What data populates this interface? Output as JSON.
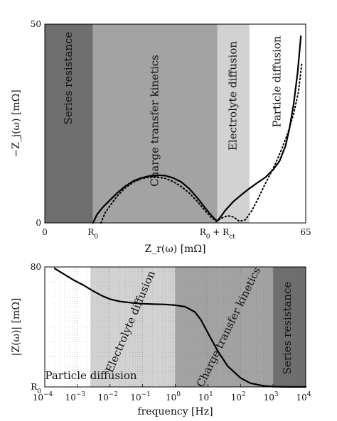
{
  "chart_data": [
    {
      "type": "line",
      "xlabel": "Z_r(ω) [mΩ]",
      "ylabel": "−Z_j(ω) [mΩ]",
      "xlim": [
        0,
        65
      ],
      "ylim": [
        0,
        50
      ],
      "y_ticks": [
        "0",
        "50"
      ],
      "x_ticks": [
        {
          "value": 0,
          "label": "0"
        },
        {
          "value": 12,
          "label": "R_0"
        },
        {
          "value": 43,
          "label": "R_0 + R_ct"
        },
        {
          "value": 65,
          "label": "65"
        }
      ],
      "regions": [
        {
          "name": "Series resistance",
          "x_range": [
            0,
            12
          ],
          "color": "#6e6e6e"
        },
        {
          "name": "Charge transfer kinetics",
          "x_range": [
            12,
            43
          ],
          "color": "#a3a3a3"
        },
        {
          "name": "Electrolyte diffusion",
          "x_range": [
            43,
            51
          ],
          "color": "#d2d2d2"
        },
        {
          "name": "Particle diffusion",
          "x_range": [
            51,
            65
          ],
          "color": "#ffffff"
        }
      ],
      "series": [
        {
          "style": "solid",
          "x": [
            12,
            13,
            14.5,
            16,
            18,
            20,
            22,
            24,
            26,
            28,
            30,
            32,
            34,
            36,
            38,
            40,
            41.5,
            42.5,
            43,
            44,
            45,
            47,
            49,
            51,
            53,
            55,
            57,
            58.5,
            60,
            61,
            62,
            63,
            63.8
          ],
          "y": [
            0,
            2.1,
            4.0,
            5.5,
            7.5,
            9.2,
            10.5,
            11.3,
            11.8,
            12.0,
            11.9,
            11.3,
            10.3,
            8.6,
            6.3,
            3.7,
            1.9,
            0.8,
            0.5,
            1.8,
            3.2,
            5.4,
            7.1,
            8.7,
            10.1,
            11.5,
            13.5,
            15.6,
            19.5,
            24.0,
            30.0,
            38.0,
            47.0
          ]
        },
        {
          "style": "dotted",
          "x": [
            14,
            15,
            16.5,
            18,
            20,
            22,
            24,
            26,
            28,
            30,
            32,
            34,
            36,
            38,
            40,
            41.5,
            42.8,
            44,
            45.5,
            47,
            48.5,
            50,
            51.5,
            53,
            54.5,
            56,
            57.5,
            59,
            60.5,
            62,
            63.2,
            64
          ],
          "y": [
            0,
            2.5,
            4.7,
            6.7,
            8.8,
            10.2,
            11.1,
            11.5,
            11.5,
            11.2,
            10.4,
            9.1,
            7.5,
            5.4,
            3.0,
            1.4,
            0.4,
            1.2,
            1.8,
            1.5,
            0.4,
            0.8,
            3.0,
            5.8,
            9.0,
            12.0,
            15.0,
            18.5,
            22.5,
            27.5,
            33.0,
            40.0
          ]
        }
      ]
    },
    {
      "type": "line",
      "xlabel": "frequency [Hz]",
      "ylabel": "|Z(ω)| [mΩ]",
      "x_scale": "log",
      "xlim": [
        0.0001,
        10000
      ],
      "ylim": [
        0,
        80
      ],
      "y_ticks": [
        {
          "value": 0,
          "label": "R_0"
        },
        {
          "value": 80,
          "label": "80"
        }
      ],
      "x_ticks": [
        {
          "value": 0.0001,
          "label": "10",
          "exp": "−4"
        },
        {
          "value": 0.001,
          "label": "10",
          "exp": "−3"
        },
        {
          "value": 0.01,
          "label": "10",
          "exp": "−2"
        },
        {
          "value": 0.1,
          "label": "10",
          "exp": "−1"
        },
        {
          "value": 1,
          "label": "10",
          "exp": "0"
        },
        {
          "value": 10,
          "label": "10",
          "exp": "1"
        },
        {
          "value": 100,
          "label": "10",
          "exp": "2"
        },
        {
          "value": 1000,
          "label": "10",
          "exp": "3"
        },
        {
          "value": 10000,
          "label": "10",
          "exp": "4"
        }
      ],
      "grid": true,
      "regions": [
        {
          "name": "Particle diffusion",
          "x_range": [
            0.0001,
            0.0025
          ],
          "color": "#ffffff"
        },
        {
          "name": "Electrolyte diffusion",
          "x_range": [
            0.0025,
            1
          ],
          "color": "#d2d2d2"
        },
        {
          "name": "Charge transfer kinetics",
          "x_range": [
            1,
            1000
          ],
          "color": "#a3a3a3"
        },
        {
          "name": "Series resistance",
          "x_range": [
            1000,
            10000
          ],
          "color": "#6e6e6e"
        }
      ],
      "series": [
        {
          "style": "solid",
          "x": [
            0.0002,
            0.0004,
            0.0008,
            0.0015,
            0.003,
            0.006,
            0.01,
            0.02,
            0.05,
            0.1,
            0.2,
            0.5,
            1,
            2,
            4,
            6,
            10,
            20,
            40,
            100,
            200,
            500,
            1000,
            3000,
            10000
          ],
          "y": [
            79,
            75,
            71,
            68,
            64,
            60.5,
            58.5,
            57,
            56,
            55.5,
            55.2,
            55.0,
            54.5,
            53.5,
            50,
            45,
            36,
            24,
            14,
            6,
            2.5,
            0.7,
            0.2,
            0,
            0
          ]
        }
      ]
    }
  ]
}
